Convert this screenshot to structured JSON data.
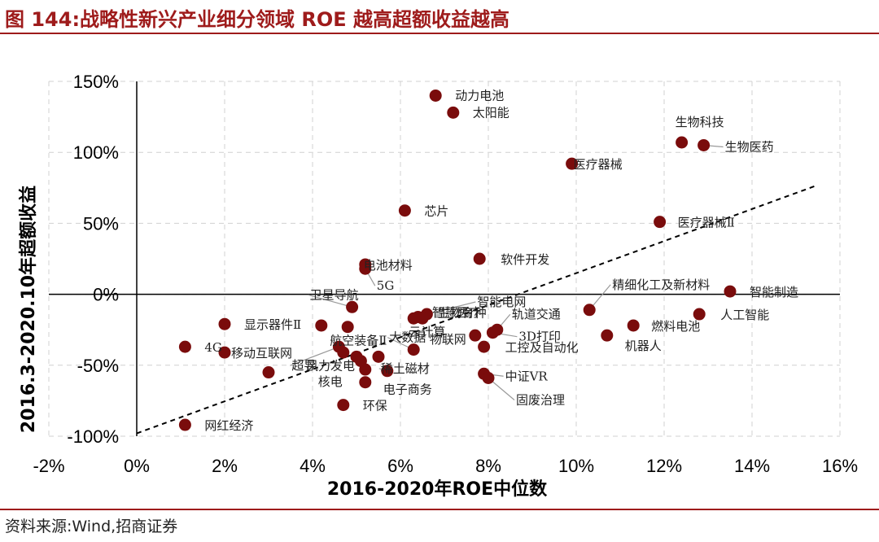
{
  "header": {
    "title": "图 144:战略性新兴产业细分领域 ROE 越高超额收益越高"
  },
  "footer": {
    "source": "资料来源:Wind,招商证券"
  },
  "colors": {
    "title": "#9e1b1b",
    "point": "#7a0c0c",
    "grid": "#d0d0d0",
    "axis": "#000000"
  },
  "chart_data": {
    "type": "scatter",
    "xlabel": "2016-2020年ROE中位数",
    "ylabel": "2016.3-2020.10年超额收益",
    "xlim": [
      -0.02,
      0.16
    ],
    "ylim": [
      -1.0,
      1.5
    ],
    "x_ticks": [
      -0.02,
      0.0,
      0.02,
      0.04,
      0.06,
      0.08,
      0.1,
      0.12,
      0.14,
      0.16
    ],
    "x_tick_labels": [
      "-2%",
      "0%",
      "2%",
      "4%",
      "6%",
      "8%",
      "10%",
      "12%",
      "14%",
      "16%"
    ],
    "y_ticks": [
      1.5,
      1.0,
      0.5,
      0.0,
      -0.5,
      -1.0
    ],
    "y_tick_labels": [
      "150%",
      "100%",
      "50%",
      "0%",
      "-50%",
      "-100%"
    ],
    "grid": true,
    "trendline": {
      "style": "dashed",
      "from": [
        0.0,
        -0.98
      ],
      "to": [
        0.155,
        0.77
      ]
    },
    "points": [
      {
        "label": "动力电池",
        "x": 0.068,
        "y": 1.4
      },
      {
        "label": "太阳能",
        "x": 0.072,
        "y": 1.28
      },
      {
        "label": "生物科技",
        "x": 0.124,
        "y": 1.07
      },
      {
        "label": "生物医药",
        "x": 0.129,
        "y": 1.05
      },
      {
        "label": "医疗器械",
        "x": 0.099,
        "y": 0.92
      },
      {
        "label": "芯片",
        "x": 0.061,
        "y": 0.59
      },
      {
        "label": "医疗器械Ⅱ",
        "x": 0.119,
        "y": 0.51
      },
      {
        "label": "电池材料",
        "x": 0.052,
        "y": 0.21
      },
      {
        "label": "5G",
        "x": 0.052,
        "y": 0.18
      },
      {
        "label": "软件开发",
        "x": 0.078,
        "y": 0.25
      },
      {
        "label": "智能电网",
        "x": 0.066,
        "y": -0.14
      },
      {
        "label": "精细化工及新材料",
        "x": 0.103,
        "y": -0.11
      },
      {
        "label": "智能制造",
        "x": 0.135,
        "y": 0.02
      },
      {
        "label": "卫星导航",
        "x": 0.049,
        "y": -0.09
      },
      {
        "label": "生物育种",
        "x": 0.064,
        "y": -0.16
      },
      {
        "label": "智慧医疗",
        "x": 0.065,
        "y": -0.17
      },
      {
        "label": "云计算",
        "x": 0.063,
        "y": -0.17
      },
      {
        "label": "轨道交通",
        "x": 0.082,
        "y": -0.25
      },
      {
        "label": "3D打印",
        "x": 0.081,
        "y": -0.27
      },
      {
        "label": "人工智能",
        "x": 0.128,
        "y": -0.14
      },
      {
        "label": "燃料电池",
        "x": 0.113,
        "y": -0.22
      },
      {
        "label": "机器人",
        "x": 0.107,
        "y": -0.29
      },
      {
        "label": "显示器件Ⅱ",
        "x": 0.02,
        "y": -0.21
      },
      {
        "label": "航空装备Ⅱ",
        "x": 0.048,
        "y": -0.23
      },
      {
        "label": "物联网",
        "x": 0.077,
        "y": -0.29
      },
      {
        "label": "工控及自动化",
        "x": 0.079,
        "y": -0.37
      },
      {
        "label": "4G",
        "x": 0.011,
        "y": -0.37
      },
      {
        "label": "移动互联网",
        "x": 0.02,
        "y": -0.41
      },
      {
        "label": "大数据",
        "x": 0.063,
        "y": -0.39
      },
      {
        "label": "风力发电",
        "x": 0.05,
        "y": -0.44
      },
      {
        "label": "超导",
        "x": 0.046,
        "y": -0.37
      },
      {
        "label": "稀土磁材",
        "x": 0.057,
        "y": -0.54
      },
      {
        "label": "核电",
        "x": 0.052,
        "y": -0.53
      },
      {
        "label": "电子商务",
        "x": 0.052,
        "y": -0.62
      },
      {
        "label": "中证VR",
        "x": 0.079,
        "y": -0.56
      },
      {
        "label": "固废治理",
        "x": 0.08,
        "y": -0.59
      },
      {
        "label": "环保",
        "x": 0.047,
        "y": -0.78
      },
      {
        "label": "网红经济",
        "x": 0.011,
        "y": -0.92
      },
      {
        "label": "",
        "x": 0.03,
        "y": -0.55
      },
      {
        "label": "",
        "x": 0.042,
        "y": -0.22
      },
      {
        "label": "",
        "x": 0.047,
        "y": -0.41
      },
      {
        "label": "",
        "x": 0.055,
        "y": -0.44
      },
      {
        "label": "",
        "x": 0.051,
        "y": -0.47
      }
    ]
  }
}
